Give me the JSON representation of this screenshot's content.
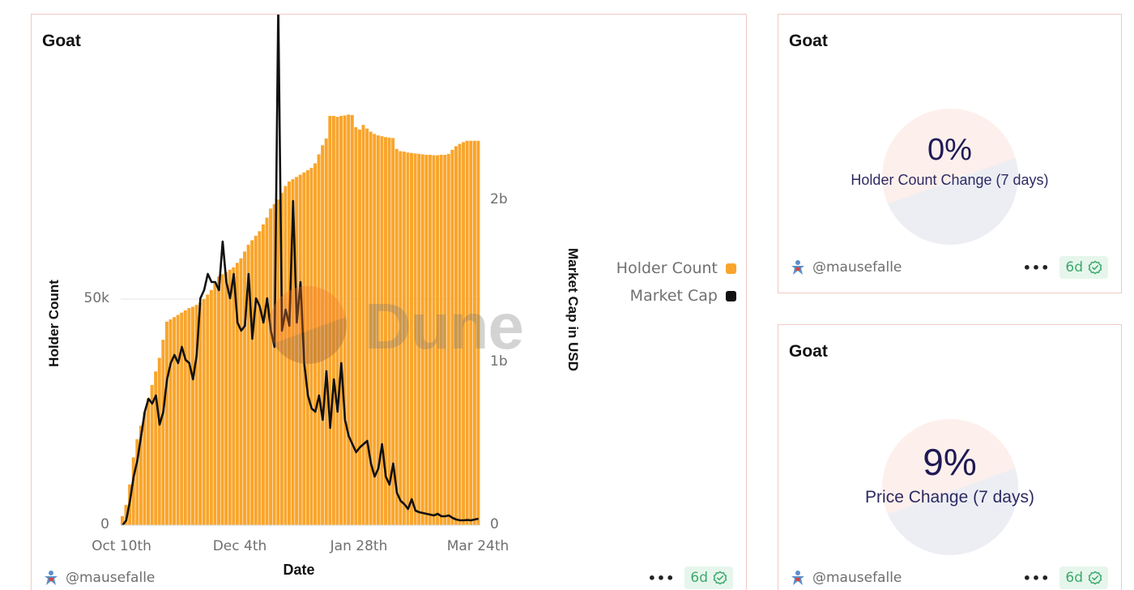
{
  "cards": {
    "main": {
      "title": "Goat",
      "author": "@mausefalle",
      "menu_label": "•••",
      "age_badge": "6d"
    },
    "holder_change": {
      "title": "Goat",
      "value": "0%",
      "label": "Holder Count Change (7 days)",
      "author": "@mausefalle",
      "menu_label": "•••",
      "age_badge": "6d"
    },
    "price_change": {
      "title": "Goat",
      "value": "9%",
      "label": "Price Change (7 days)",
      "author": "@mausefalle",
      "menu_label": "•••",
      "age_badge": "6d"
    }
  },
  "watermark": "Dune",
  "colors": {
    "holder_bar": "#f9a52b",
    "market_cap_line": "#111111",
    "card_border": "#f1c9c4",
    "badge_bg": "#e6f6ec",
    "badge_fg": "#3ea96c",
    "counter_text": "#1f1a55"
  },
  "chart_data": {
    "type": "bar+line",
    "title": "Goat",
    "xlabel": "Date",
    "ylabel_left": "Holder Count",
    "ylabel_right": "Market Cap in USD",
    "x_ticks": [
      "Oct 10th",
      "Dec 4th",
      "Jan 28th",
      "Mar 24th"
    ],
    "y_left_ticks": [
      "0",
      "50k"
    ],
    "y_right_ticks": [
      "0",
      "1b",
      "2b"
    ],
    "y_left_range": [
      0,
      97000
    ],
    "y_right_range": [
      0,
      3200000000
    ],
    "legend": [
      "Holder Count",
      "Market Cap"
    ],
    "legend_position": "right",
    "grid": "horizontal at 50k only",
    "series": [
      {
        "name": "Holder Count",
        "type": "bar",
        "color": "#f9a52b",
        "values": [
          2000,
          4500,
          9000,
          15000,
          19000,
          22000,
          25000,
          28000,
          31000,
          34000,
          37000,
          41000,
          45000,
          45500,
          46000,
          46500,
          47000,
          47500,
          48000,
          48300,
          48700,
          49200,
          50000,
          51000,
          52000,
          53500,
          55000,
          55500,
          56000,
          56500,
          57000,
          58000,
          59000,
          60500,
          62000,
          63000,
          64000,
          65000,
          66500,
          68000,
          70000,
          71000,
          72000,
          73500,
          75000,
          76000,
          76500,
          77000,
          77500,
          78000,
          78500,
          79000,
          80000,
          82000,
          84000,
          85500,
          90500,
          90500,
          90300,
          90500,
          90600,
          90800,
          90700,
          88000,
          87500,
          88500,
          87700,
          87000,
          86500,
          86200,
          86000,
          85800,
          85700,
          85600,
          83200,
          82700,
          82600,
          82400,
          82300,
          82200,
          82100,
          82000,
          81900,
          81900,
          81800,
          81800,
          81900,
          81900,
          82100,
          83000,
          83800,
          84300,
          84700,
          85000,
          85000,
          85000,
          85000
        ]
      },
      {
        "name": "Market Cap",
        "type": "line",
        "color": "#111111",
        "values": [
          0,
          30000000,
          150000000,
          300000000,
          400000000,
          550000000,
          700000000,
          780000000,
          750000000,
          800000000,
          620000000,
          700000000,
          900000000,
          1000000000,
          1050000000,
          1000000000,
          1100000000,
          1020000000,
          1000000000,
          900000000,
          1050000000,
          1400000000,
          1450000000,
          1550000000,
          1500000000,
          1500000000,
          1450000000,
          1750000000,
          1500000000,
          1400000000,
          1550000000,
          1250000000,
          1200000000,
          1230000000,
          1550000000,
          1150000000,
          1400000000,
          1350000000,
          1250000000,
          1400000000,
          1200000000,
          1100000000,
          3200000000,
          1200000000,
          1330000000,
          1230000000,
          2000000000,
          1250000000,
          1500000000,
          1000000000,
          800000000,
          720000000,
          700000000,
          800000000,
          650000000,
          950000000,
          600000000,
          900000000,
          700000000,
          1000000000,
          650000000,
          550000000,
          500000000,
          450000000,
          480000000,
          500000000,
          520000000,
          380000000,
          300000000,
          350000000,
          500000000,
          300000000,
          250000000,
          380000000,
          200000000,
          150000000,
          130000000,
          100000000,
          160000000,
          90000000,
          80000000,
          75000000,
          70000000,
          65000000,
          60000000,
          70000000,
          55000000,
          55000000,
          60000000,
          45000000,
          35000000,
          30000000,
          30000000,
          32000000,
          30000000,
          35000000,
          40000000
        ]
      }
    ]
  }
}
